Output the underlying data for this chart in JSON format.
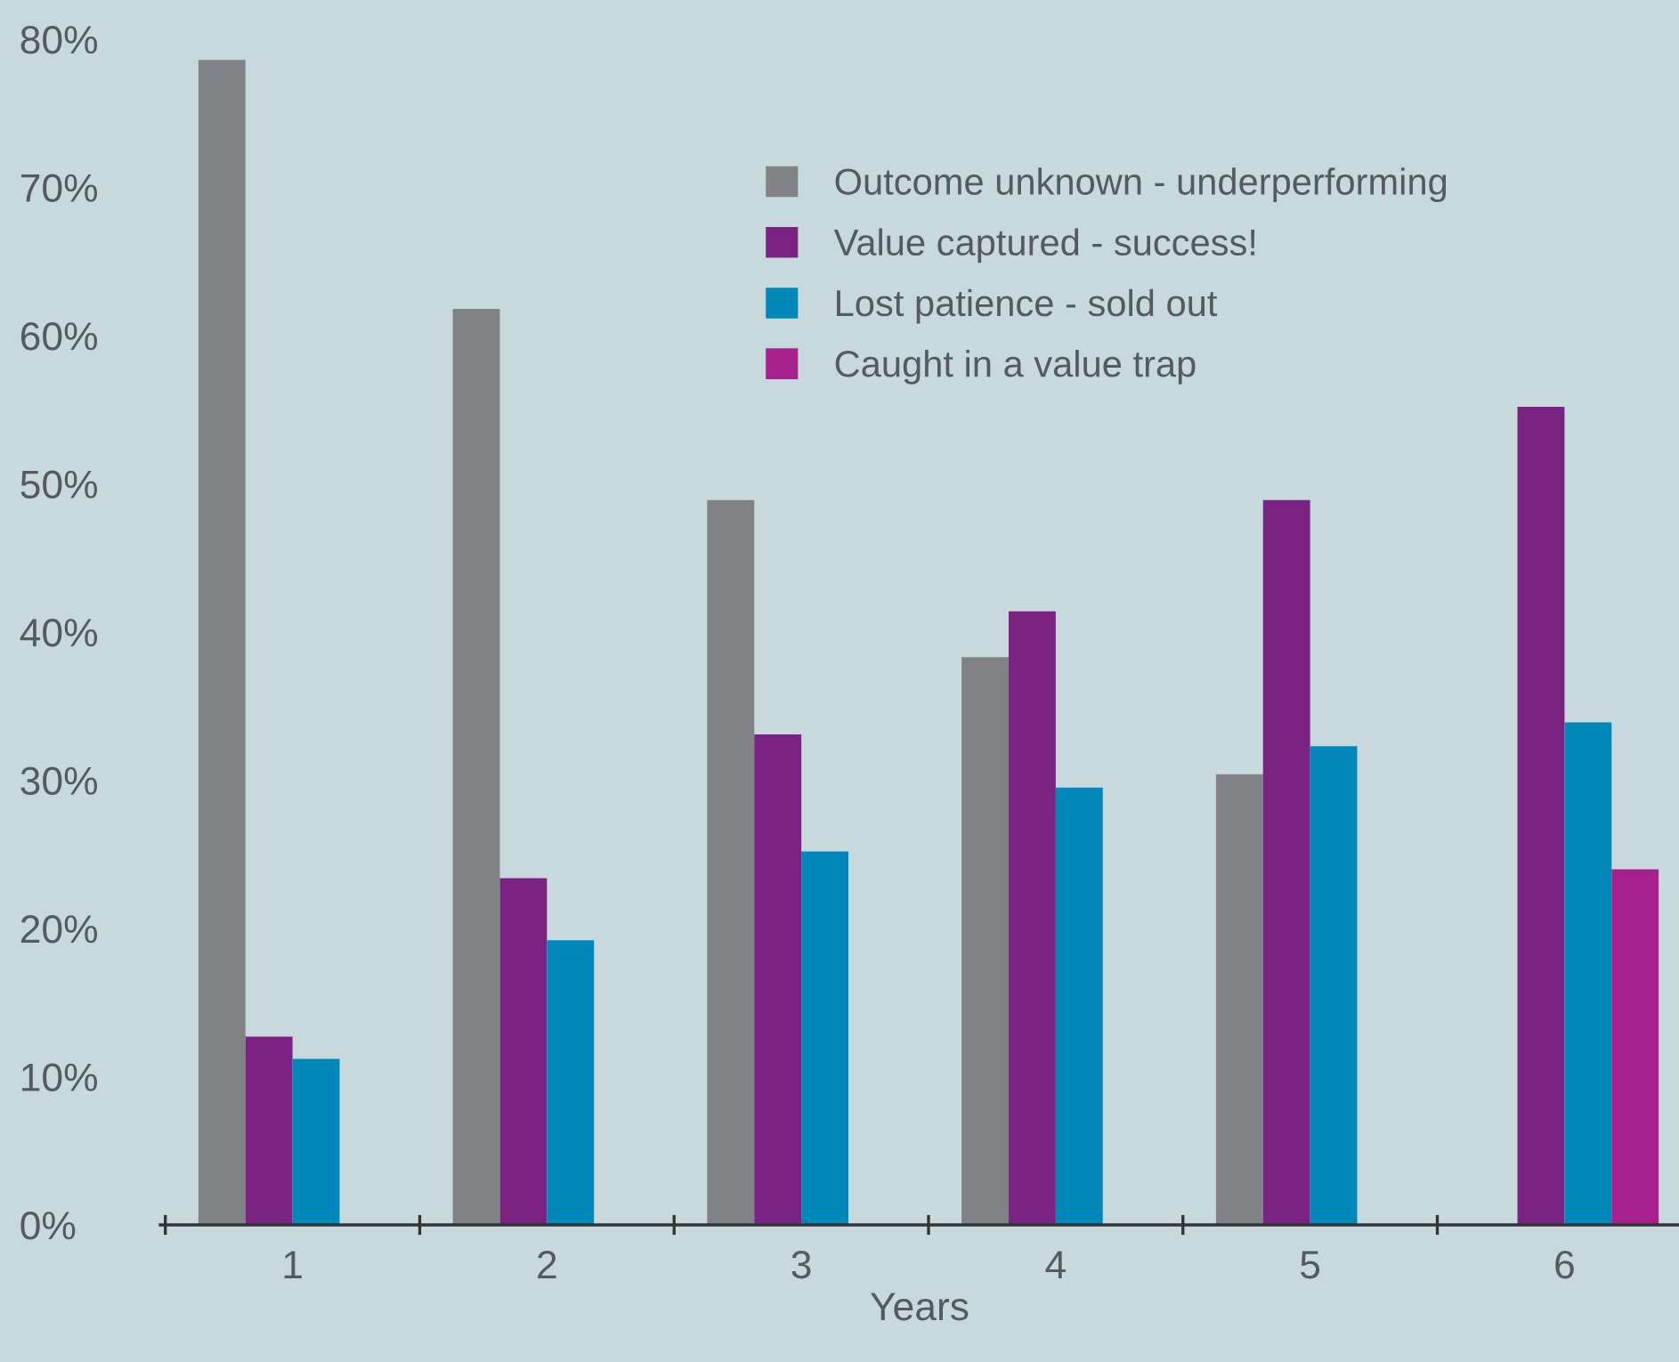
{
  "chart_data": {
    "type": "bar",
    "xlabel": "Years",
    "categories": [
      "1",
      "2",
      "3",
      "4",
      "5",
      "6"
    ],
    "series": [
      {
        "name": "Outcome unknown - underperforming",
        "color": "#808285",
        "values": [
          78.6,
          61.8,
          48.9,
          38.3,
          30.4,
          null
        ]
      },
      {
        "name": "Value captured - success!",
        "color": "#7b2382",
        "values": [
          12.7,
          23.4,
          33.1,
          41.4,
          48.9,
          55.2
        ]
      },
      {
        "name": "Lost patience - sold out",
        "color": "#0088bb",
        "values": [
          11.2,
          19.2,
          25.2,
          29.5,
          32.3,
          33.9
        ]
      },
      {
        "name": "Caught in a value trap",
        "color": "#a7218e",
        "values": [
          null,
          null,
          null,
          null,
          null,
          24.0
        ]
      }
    ],
    "ylim": [
      0,
      80
    ],
    "yticks": [
      {
        "value": 0,
        "label": "0%"
      },
      {
        "value": 10,
        "label": "10%"
      },
      {
        "value": 20,
        "label": "20%"
      },
      {
        "value": 30,
        "label": "30%"
      },
      {
        "value": 40,
        "label": "40%"
      },
      {
        "value": 50,
        "label": "50%"
      },
      {
        "value": 60,
        "label": "60%"
      },
      {
        "value": 70,
        "label": "70%"
      },
      {
        "value": 80,
        "label": "80%"
      }
    ],
    "grid": false,
    "legend": "top right"
  }
}
